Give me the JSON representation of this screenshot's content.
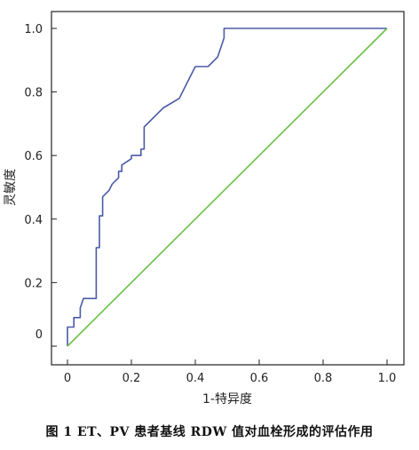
{
  "caption": "图 1   ET、PV 患者基线 RDW 值对血栓形成的评估作用",
  "chart_data": {
    "type": "line",
    "title": "",
    "xlabel": "1-特异度",
    "ylabel": "灵敏度",
    "xlim": [
      0,
      1.0
    ],
    "ylim": [
      0,
      1.0
    ],
    "x_ticks": [
      0,
      0.2,
      0.4,
      0.6,
      0.8,
      1.0
    ],
    "x_tick_labels": [
      "0",
      "0.2",
      "0.4",
      "0.6",
      "0.8",
      "1.0"
    ],
    "y_ticks": [
      0,
      0.2,
      0.4,
      0.6,
      0.8,
      1.0
    ],
    "y_tick_labels": [
      "0",
      "0.2",
      "0.4",
      "0.6",
      "0.8",
      "1.0"
    ],
    "grid": false,
    "legend": "none",
    "series": [
      {
        "color": "#4a5aa8",
        "x": [
          0,
          0,
          0.02,
          0.02,
          0.04,
          0.04,
          0.05,
          0.09,
          0.09,
          0.1,
          0.1,
          0.11,
          0.11,
          0.13,
          0.14,
          0.16,
          0.16,
          0.17,
          0.17,
          0.2,
          0.2,
          0.23,
          0.23,
          0.24,
          0.24,
          0.3,
          0.35,
          0.37,
          0.4,
          0.4,
          0.44,
          0.44,
          0.47,
          0.47,
          0.49,
          0.49,
          0.52,
          0.6,
          0.7,
          0.8,
          0.9,
          1.0
        ],
        "y": [
          0,
          0.06,
          0.06,
          0.09,
          0.09,
          0.12,
          0.15,
          0.15,
          0.31,
          0.31,
          0.41,
          0.41,
          0.47,
          0.49,
          0.51,
          0.53,
          0.55,
          0.55,
          0.57,
          0.59,
          0.6,
          0.6,
          0.62,
          0.62,
          0.69,
          0.75,
          0.78,
          0.82,
          0.88,
          0.88,
          0.88,
          0.88,
          0.91,
          0.91,
          0.97,
          1.0,
          1.0,
          1.0,
          1.0,
          1.0,
          1.0,
          1.0
        ]
      },
      {
        "color": "#6abf45",
        "x": [
          0,
          1.0
        ],
        "y": [
          0,
          1.0
        ]
      }
    ]
  }
}
